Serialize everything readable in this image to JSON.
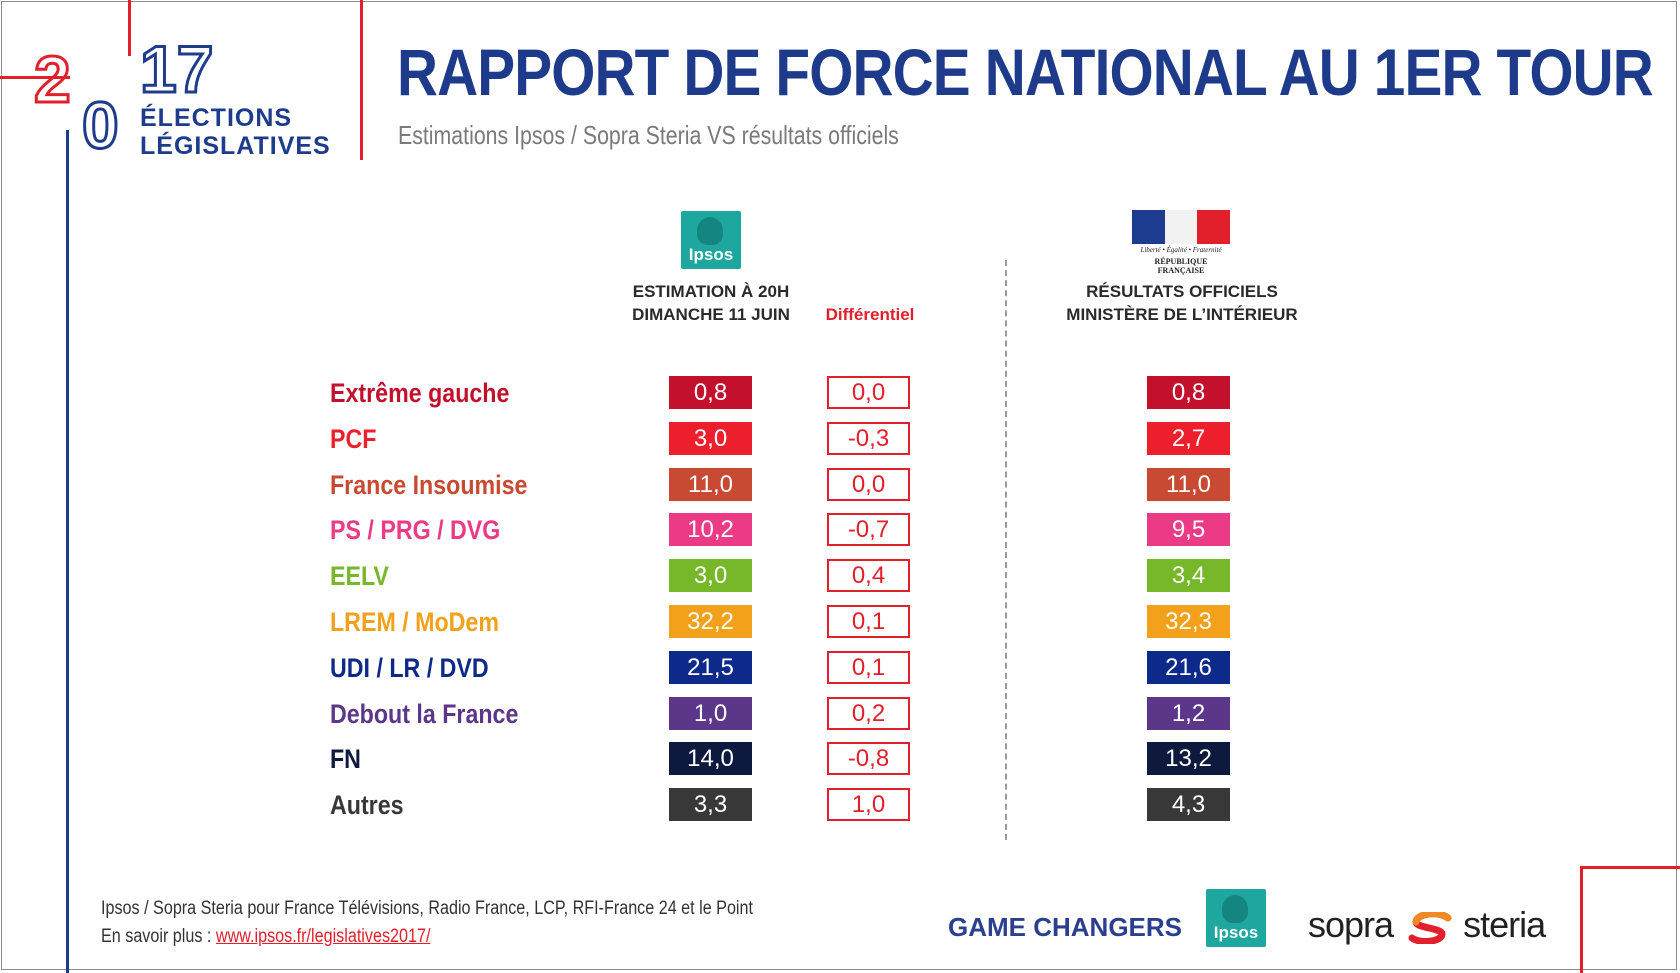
{
  "logo": {
    "year_a": "2",
    "year_b": "0",
    "year_c": "17",
    "line1": "ÉLECTIONS",
    "line2": "LÉGISLATIVES"
  },
  "header": {
    "title": "RAPPORT DE FORCE NATIONAL AU 1ER TOUR",
    "subtitle": "Estimations Ipsos / Sopra Steria VS résultats officiels"
  },
  "columns": {
    "ipsos_logo_text": "Ipsos",
    "estimation_line1": "ESTIMATION À 20H",
    "estimation_line2": "DIMANCHE 11 JUIN",
    "differential": "Différentiel",
    "official_line1": "RÉSULTATS OFFICIELS",
    "official_line2": "MINISTÈRE DE L’INTÉRIEUR",
    "rf_motto": "Liberté • Égalité • Fraternité",
    "rf_name": "RÉPUBLIQUE FRANÇAISE"
  },
  "colors": {
    "flag_blue": "#1d3c8f",
    "flag_red": "#e2202c",
    "diff_border": "#e2202c"
  },
  "chart_data": {
    "type": "table",
    "title": "RAPPORT DE FORCE NATIONAL AU 1ER TOUR",
    "columns": [
      "ESTIMATION À 20H DIMANCHE 11 JUIN",
      "Différentiel",
      "RÉSULTATS OFFICIELS MINISTÈRE DE L’INTÉRIEUR"
    ],
    "rows": [
      {
        "party": "Extrême gauche",
        "color": "#c3112d",
        "estimation": "0,8",
        "diff": "0,0",
        "official": "0,8"
      },
      {
        "party": "PCF",
        "color": "#ee1f2d",
        "estimation": "3,0",
        "diff": "-0,3",
        "official": "2,7"
      },
      {
        "party": "France Insoumise",
        "color": "#c94a32",
        "estimation": "11,0",
        "diff": "0,0",
        "official": "11,0"
      },
      {
        "party": "PS / PRG / DVG",
        "color": "#ec3b86",
        "estimation": "10,2",
        "diff": "-0,7",
        "official": "9,5"
      },
      {
        "party": "EELV",
        "color": "#76b82a",
        "estimation": "3,0",
        "diff": "0,4",
        "official": "3,4"
      },
      {
        "party": "LREM / MoDem",
        "color": "#f3a11b",
        "estimation": "32,2",
        "diff": "0,1",
        "official": "32,3"
      },
      {
        "party": "UDI / LR / DVD",
        "color": "#0d2a8a",
        "estimation": "21,5",
        "diff": "0,1",
        "official": "21,6"
      },
      {
        "party": "Debout la France",
        "color": "#5c3689",
        "estimation": "1,0",
        "diff": "0,2",
        "official": "1,2"
      },
      {
        "party": "FN",
        "color": "#0d1a3e",
        "estimation": "14,0",
        "diff": "-0,8",
        "official": "13,2"
      },
      {
        "party": "Autres",
        "color": "#383838",
        "estimation": "3,3",
        "diff": "1,0",
        "official": "4,3"
      }
    ]
  },
  "footer": {
    "note": "Ipsos / Sopra Steria pour France Télévisions, Radio France, LCP, RFI-France 24 et le Point",
    "more_label": "En savoir plus :",
    "link": "www.ipsos.fr/legislatives2017/",
    "game_changers": "GAME CHANGERS",
    "ipsos": "Ipsos",
    "sopra": "sopra",
    "steria": "steria"
  }
}
